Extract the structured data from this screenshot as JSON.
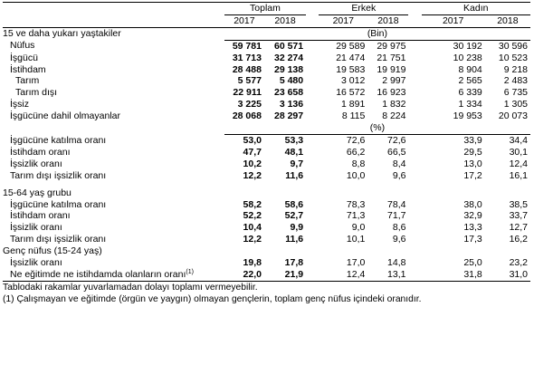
{
  "header": {
    "groups": [
      "Toplam",
      "Erkek",
      "Kadın"
    ],
    "years": [
      "2017",
      "2018"
    ]
  },
  "section1": {
    "title": "15 ve daha yukarı yaştakiler",
    "unit_bin": "(Bin)",
    "rows": [
      {
        "label": "Nüfus",
        "t17": "59 781",
        "t18": "60 571",
        "e17": "29 589",
        "e18": "29 975",
        "k17": "30 192",
        "k18": "30 596"
      },
      {
        "label": "İşgücü",
        "t17": "31 713",
        "t18": "32 274",
        "e17": "21 474",
        "e18": "21 751",
        "k17": "10 238",
        "k18": "10 523"
      },
      {
        "label": "İstihdam",
        "t17": "28 488",
        "t18": "29 138",
        "e17": "19 583",
        "e18": "19 919",
        "k17": "8 904",
        "k18": "9 218"
      },
      {
        "label": "Tarım",
        "t17": "5 577",
        "t18": "5 480",
        "e17": "3 012",
        "e18": "2 997",
        "k17": "2 565",
        "k18": "2 483"
      },
      {
        "label": "Tarım dışı",
        "t17": "22 911",
        "t18": "23 658",
        "e17": "16 572",
        "e18": "16 923",
        "k17": "6 339",
        "k18": "6 735"
      },
      {
        "label": "İşsiz",
        "t17": "3 225",
        "t18": "3 136",
        "e17": "1 891",
        "e18": "1 832",
        "k17": "1 334",
        "k18": "1 305"
      },
      {
        "label": "İşgücüne dahil olmayanlar",
        "t17": "28 068",
        "t18": "28 297",
        "e17": "8 115",
        "e18": "8 224",
        "k17": "19 953",
        "k18": "20 073"
      }
    ],
    "unit_pct": "(%)",
    "rates": [
      {
        "label": "İşgücüne katılma oranı",
        "t17": "53,0",
        "t18": "53,3",
        "e17": "72,6",
        "e18": "72,6",
        "k17": "33,9",
        "k18": "34,4"
      },
      {
        "label": "İstihdam oranı",
        "t17": "47,7",
        "t18": "48,1",
        "e17": "66,2",
        "e18": "66,5",
        "k17": "29,5",
        "k18": "30,1"
      },
      {
        "label": "İşsizlik oranı",
        "t17": "10,2",
        "t18": "9,7",
        "e17": "8,8",
        "e18": "8,4",
        "k17": "13,0",
        "k18": "12,4"
      },
      {
        "label": "Tarım dışı işsizlik oranı",
        "t17": "12,2",
        "t18": "11,6",
        "e17": "10,0",
        "e18": "9,6",
        "k17": "17,2",
        "k18": "16,1"
      }
    ]
  },
  "section2": {
    "title": "15-64 yaş grubu",
    "rates": [
      {
        "label": "İşgücüne katılma oranı",
        "t17": "58,2",
        "t18": "58,6",
        "e17": "78,3",
        "e18": "78,4",
        "k17": "38,0",
        "k18": "38,5"
      },
      {
        "label": "İstihdam oranı",
        "t17": "52,2",
        "t18": "52,7",
        "e17": "71,3",
        "e18": "71,7",
        "k17": "32,9",
        "k18": "33,7"
      },
      {
        "label": "İşsizlik oranı",
        "t17": "10,4",
        "t18": "9,9",
        "e17": "9,0",
        "e18": "8,6",
        "k17": "13,3",
        "k18": "12,7"
      },
      {
        "label": "Tarım dışı işsizlik oranı",
        "t17": "12,2",
        "t18": "11,6",
        "e17": "10,1",
        "e18": "9,6",
        "k17": "17,3",
        "k18": "16,2"
      }
    ]
  },
  "section3": {
    "title": "Genç nüfus (15-24 yaş)",
    "rows": [
      {
        "label": "İşsizlik oranı",
        "t17": "19,8",
        "t18": "17,8",
        "e17": "17,0",
        "e18": "14,8",
        "k17": "25,0",
        "k18": "23,2"
      },
      {
        "label": "Ne eğitimde ne istihdamda olanların oranı",
        "sup": "(1)",
        "t17": "22,0",
        "t18": "21,9",
        "e17": "12,4",
        "e18": "13,1",
        "k17": "31,8",
        "k18": "31,0"
      }
    ]
  },
  "notes": [
    "Tablodaki rakamlar yuvarlamadan dolayı toplamı vermeyebilir.",
    "(1) Çalışmayan ve eğitimde (örgün ve yaygın) olmayan gençlerin, toplam genç nüfus içindeki oranıdır."
  ]
}
